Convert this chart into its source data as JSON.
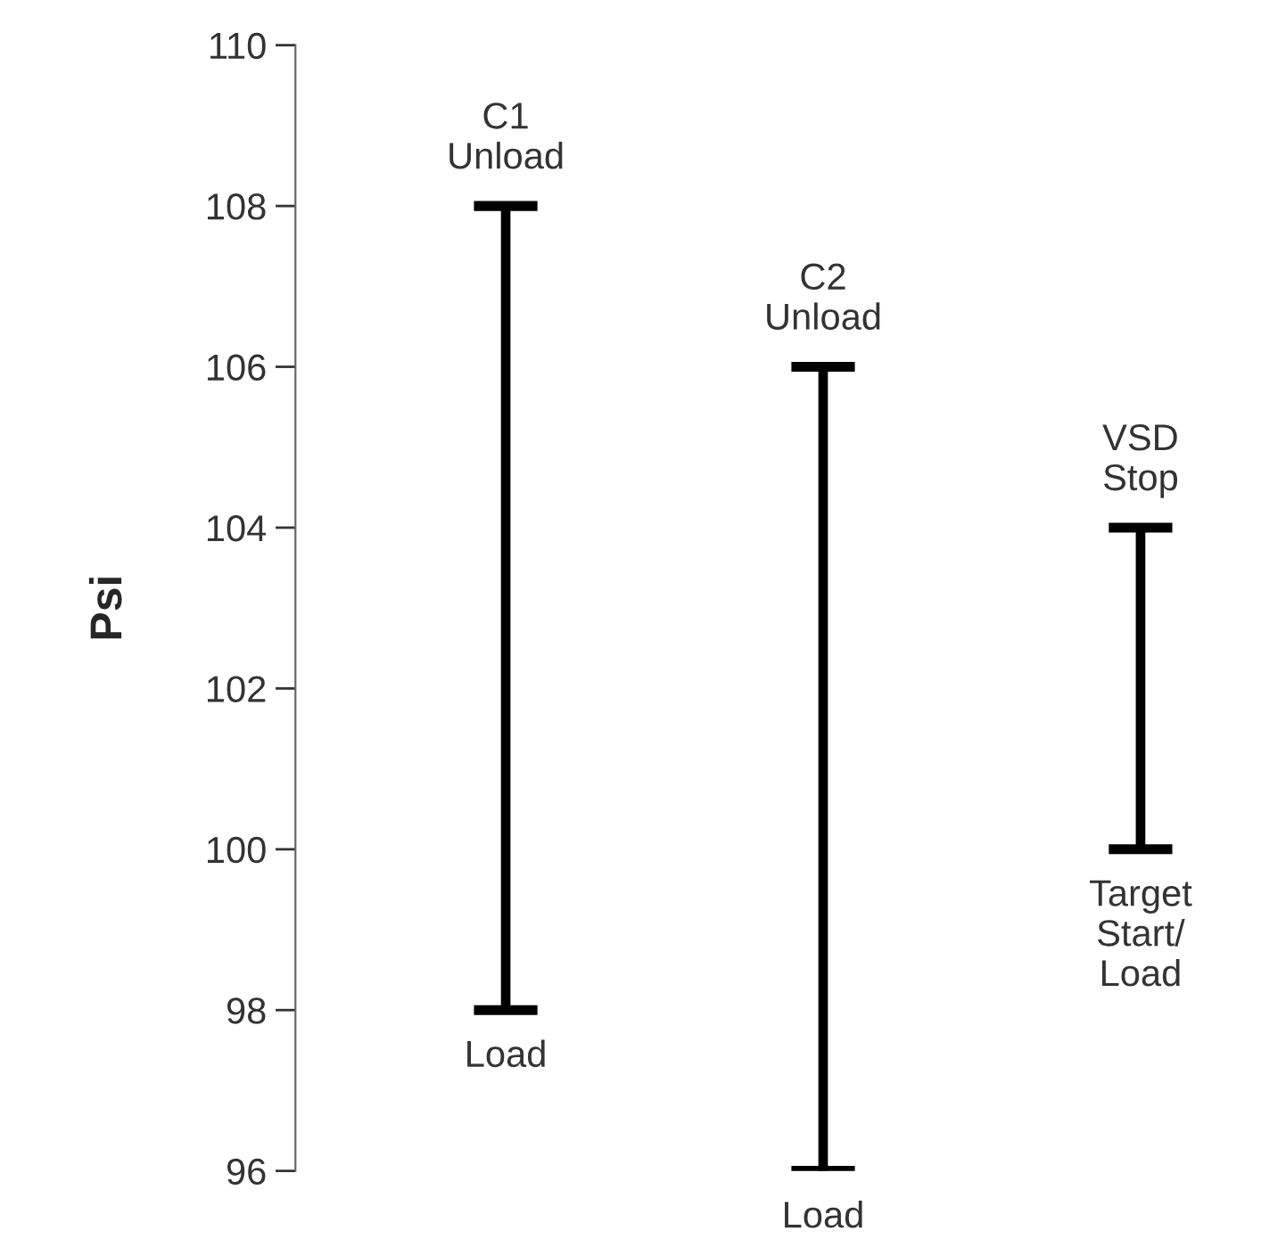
{
  "chart_data": {
    "type": "bar",
    "ylabel": "Psi",
    "categories": [
      null,
      null,
      null
    ],
    "base": [
      98,
      96,
      100
    ],
    "values": [
      10,
      10,
      4
    ],
    "color": "#000000",
    "ylim": [
      96,
      110
    ],
    "yticks": [
      96,
      98,
      100,
      102,
      104,
      106,
      108,
      110
    ],
    "tick_labels": "y",
    "grid": false,
    "annotations": [
      {
        "text": "C1\nUnload",
        "y": 108
      },
      {
        "text": "Load",
        "y": 98
      },
      {
        "text": "C2\nUnload",
        "y": 106
      },
      {
        "text": "Load",
        "y": 96
      },
      {
        "text": "VSD\nStop",
        "y": 104
      },
      {
        "text": "Target\nStart/\nLoad",
        "y": 100
      }
    ]
  }
}
